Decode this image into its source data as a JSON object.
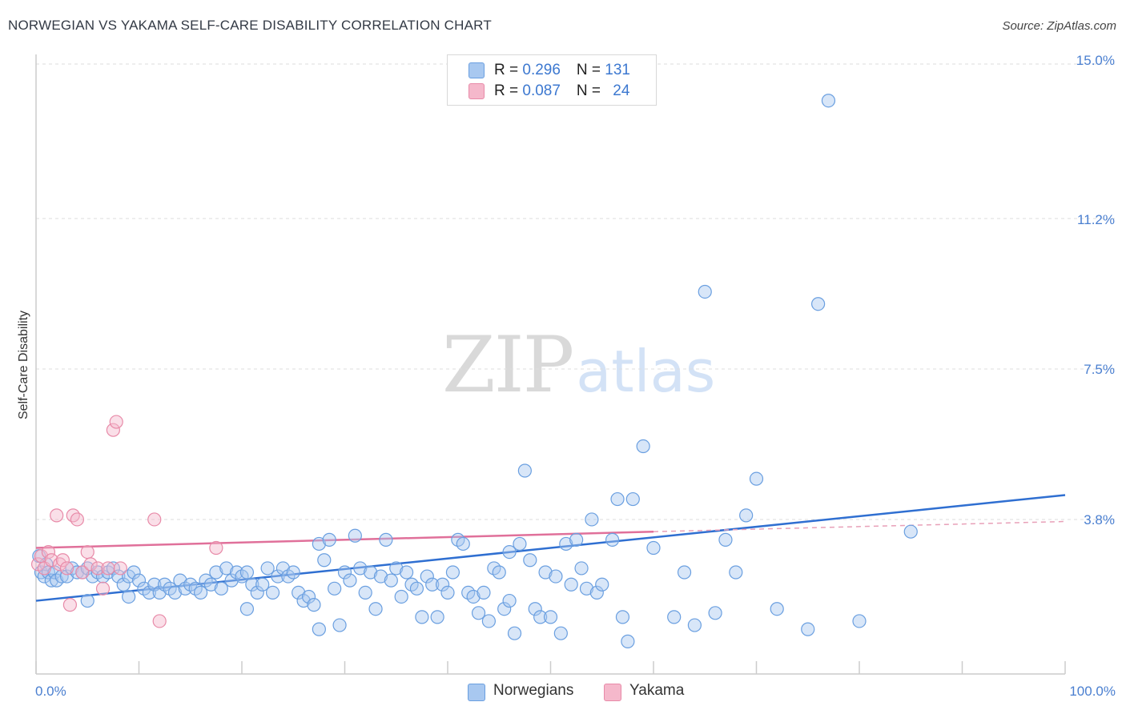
{
  "title": "NORWEGIAN VS YAKAMA SELF-CARE DISABILITY CORRELATION CHART",
  "source": "Source: ZipAtlas.com",
  "watermark": {
    "zip": "ZIP",
    "atlas": "atlas"
  },
  "legend": {
    "rows": [
      {
        "r_label": "R = ",
        "r_value": "0.296",
        "n_label": "N = ",
        "n_value": "131",
        "color": "#a8c8f0"
      },
      {
        "r_label": "R = ",
        "r_value": "0.087",
        "n_label": "N = ",
        "n_value": "24",
        "color": "#f5b8cb"
      }
    ]
  },
  "bottom_legend": [
    {
      "label": "Norwegians",
      "color": "#a8c8f0"
    },
    {
      "label": "Yakama",
      "color": "#f5b8cb"
    }
  ],
  "chart_data": {
    "type": "scatter",
    "title": "NORWEGIAN VS YAKAMA SELF-CARE DISABILITY CORRELATION CHART",
    "xlabel": "",
    "ylabel": "Self-Care Disability",
    "xlim": [
      0,
      100
    ],
    "ylim": [
      0,
      15
    ],
    "x_tick_labels": [
      "0.0%",
      "100.0%"
    ],
    "y_ticks": [
      3.8,
      7.5,
      11.2,
      15.0
    ],
    "y_tick_labels": [
      "3.8%",
      "7.5%",
      "11.2%",
      "15.0%"
    ],
    "grid": "horizontal dashed",
    "legend_position": "top-center",
    "series": [
      {
        "name": "Norwegians",
        "color": "#6a9fe0",
        "fill": "#a8c8f0",
        "trend": {
          "x": [
            0,
            100
          ],
          "y": [
            1.8,
            4.4
          ]
        },
        "points": [
          [
            0.3,
            2.9
          ],
          [
            0.5,
            2.5
          ],
          [
            0.8,
            2.4
          ],
          [
            1.0,
            2.7
          ],
          [
            1.2,
            2.5
          ],
          [
            1.5,
            2.3
          ],
          [
            1.8,
            2.5
          ],
          [
            2.0,
            2.3
          ],
          [
            2.5,
            2.4
          ],
          [
            3.0,
            2.4
          ],
          [
            3.5,
            2.6
          ],
          [
            4.0,
            2.5
          ],
          [
            4.5,
            2.5
          ],
          [
            5.0,
            2.6
          ],
          [
            5.5,
            2.4
          ],
          [
            6.0,
            2.5
          ],
          [
            6.5,
            2.4
          ],
          [
            7.0,
            2.5
          ],
          [
            7.5,
            2.6
          ],
          [
            8.0,
            2.4
          ],
          [
            8.5,
            2.2
          ],
          [
            9.0,
            2.4
          ],
          [
            9.5,
            2.5
          ],
          [
            10.0,
            2.3
          ],
          [
            10.5,
            2.1
          ],
          [
            11.0,
            2.0
          ],
          [
            11.5,
            2.2
          ],
          [
            12.0,
            2.0
          ],
          [
            12.5,
            2.2
          ],
          [
            13.0,
            2.1
          ],
          [
            13.5,
            2.0
          ],
          [
            14.0,
            2.3
          ],
          [
            14.5,
            2.1
          ],
          [
            15.0,
            2.2
          ],
          [
            15.5,
            2.1
          ],
          [
            16.0,
            2.0
          ],
          [
            16.5,
            2.3
          ],
          [
            17.0,
            2.2
          ],
          [
            17.5,
            2.5
          ],
          [
            18.0,
            2.1
          ],
          [
            18.5,
            2.6
          ],
          [
            19.0,
            2.3
          ],
          [
            19.5,
            2.5
          ],
          [
            20.0,
            2.4
          ],
          [
            20.5,
            2.5
          ],
          [
            21.0,
            2.2
          ],
          [
            21.5,
            2.0
          ],
          [
            22.0,
            2.2
          ],
          [
            22.5,
            2.6
          ],
          [
            23.0,
            2.0
          ],
          [
            23.5,
            2.4
          ],
          [
            24.0,
            2.6
          ],
          [
            24.5,
            2.4
          ],
          [
            25.0,
            2.5
          ],
          [
            25.5,
            2.0
          ],
          [
            26.0,
            1.8
          ],
          [
            26.5,
            1.9
          ],
          [
            27.0,
            1.7
          ],
          [
            27.5,
            3.2
          ],
          [
            28.0,
            2.8
          ],
          [
            28.5,
            3.3
          ],
          [
            29.0,
            2.1
          ],
          [
            29.5,
            1.2
          ],
          [
            30.0,
            2.5
          ],
          [
            30.5,
            2.3
          ],
          [
            31.0,
            3.4
          ],
          [
            31.5,
            2.6
          ],
          [
            32.0,
            2.0
          ],
          [
            32.5,
            2.5
          ],
          [
            33.0,
            1.6
          ],
          [
            33.5,
            2.4
          ],
          [
            34.0,
            3.3
          ],
          [
            34.5,
            2.3
          ],
          [
            35.0,
            2.6
          ],
          [
            35.5,
            1.9
          ],
          [
            36.0,
            2.5
          ],
          [
            36.5,
            2.2
          ],
          [
            37.0,
            2.1
          ],
          [
            37.5,
            1.4
          ],
          [
            38.0,
            2.4
          ],
          [
            38.5,
            2.2
          ],
          [
            39.0,
            1.4
          ],
          [
            39.5,
            2.2
          ],
          [
            40.0,
            2.0
          ],
          [
            40.5,
            2.5
          ],
          [
            41.0,
            3.3
          ],
          [
            41.5,
            3.2
          ],
          [
            42.0,
            2.0
          ],
          [
            42.5,
            1.9
          ],
          [
            43.0,
            1.5
          ],
          [
            43.5,
            2.0
          ],
          [
            44.0,
            1.3
          ],
          [
            44.5,
            2.6
          ],
          [
            45.0,
            2.5
          ],
          [
            45.5,
            1.6
          ],
          [
            46.0,
            1.8
          ],
          [
            46.5,
            1.0
          ],
          [
            47.0,
            3.2
          ],
          [
            47.5,
            5.0
          ],
          [
            48.0,
            2.8
          ],
          [
            48.5,
            1.6
          ],
          [
            49.0,
            1.4
          ],
          [
            49.5,
            2.5
          ],
          [
            50.0,
            1.4
          ],
          [
            50.5,
            2.4
          ],
          [
            51.0,
            1.0
          ],
          [
            51.5,
            3.2
          ],
          [
            52.0,
            2.2
          ],
          [
            52.5,
            3.3
          ],
          [
            53.0,
            2.6
          ],
          [
            53.5,
            2.1
          ],
          [
            54.0,
            3.8
          ],
          [
            54.5,
            2.0
          ],
          [
            55.0,
            2.2
          ],
          [
            56.0,
            3.3
          ],
          [
            56.5,
            4.3
          ],
          [
            57.0,
            1.4
          ],
          [
            57.5,
            0.8
          ],
          [
            58.0,
            4.3
          ],
          [
            59.0,
            5.6
          ],
          [
            60.0,
            3.1
          ],
          [
            62.0,
            1.4
          ],
          [
            63.0,
            2.5
          ],
          [
            64.0,
            1.2
          ],
          [
            65.0,
            9.4
          ],
          [
            66.0,
            1.5
          ],
          [
            67.0,
            3.3
          ],
          [
            68.0,
            2.5
          ],
          [
            69.0,
            3.9
          ],
          [
            70.0,
            4.8
          ],
          [
            72.0,
            1.6
          ],
          [
            75.0,
            1.1
          ],
          [
            76.0,
            9.1
          ],
          [
            77.0,
            14.1
          ],
          [
            80.0,
            1.3
          ],
          [
            85.0,
            3.5
          ],
          [
            5.0,
            1.8
          ],
          [
            9.0,
            1.9
          ],
          [
            20.5,
            1.6
          ],
          [
            27.5,
            1.1
          ],
          [
            46.0,
            3.0
          ]
        ]
      },
      {
        "name": "Yakama",
        "color": "#e88aa8",
        "fill": "#f5b8cb",
        "trend": {
          "x": [
            0,
            60
          ],
          "y": [
            3.1,
            3.5
          ]
        },
        "trend_dashed": {
          "x": [
            60,
            100
          ],
          "y": [
            3.5,
            3.75
          ]
        },
        "points": [
          [
            0.2,
            2.7
          ],
          [
            0.5,
            2.9
          ],
          [
            0.8,
            2.6
          ],
          [
            1.2,
            3.0
          ],
          [
            1.5,
            2.8
          ],
          [
            2.0,
            3.9
          ],
          [
            2.3,
            2.7
          ],
          [
            2.6,
            2.8
          ],
          [
            3.0,
            2.6
          ],
          [
            3.3,
            1.7
          ],
          [
            3.6,
            3.9
          ],
          [
            4.0,
            3.8
          ],
          [
            4.5,
            2.5
          ],
          [
            5.0,
            3.0
          ],
          [
            5.3,
            2.7
          ],
          [
            6.0,
            2.6
          ],
          [
            6.5,
            2.1
          ],
          [
            7.0,
            2.6
          ],
          [
            7.5,
            6.0
          ],
          [
            7.8,
            6.2
          ],
          [
            8.2,
            2.6
          ],
          [
            11.5,
            3.8
          ],
          [
            12.0,
            1.3
          ],
          [
            17.5,
            3.1
          ]
        ]
      }
    ]
  }
}
